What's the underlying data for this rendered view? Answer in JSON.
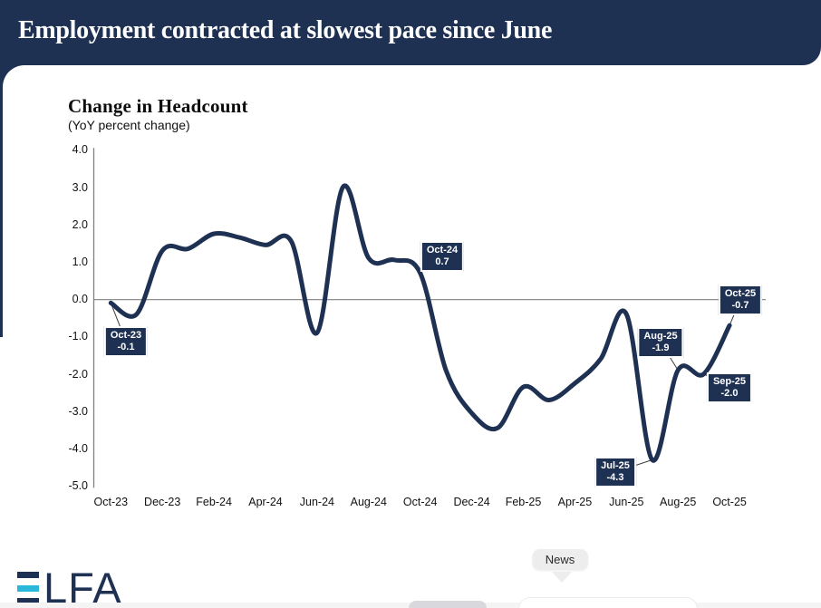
{
  "header": {
    "title": "Employment contracted at slowest pace since June"
  },
  "chart": {
    "title": "Change in Headcount",
    "subtitle": "(YoY percent change)"
  },
  "chart_data": {
    "type": "line",
    "x": [
      "Oct-23",
      "Nov-23",
      "Dec-23",
      "Jan-24",
      "Feb-24",
      "Mar-24",
      "Apr-24",
      "May-24",
      "Jun-24",
      "Jul-24",
      "Aug-24",
      "Sep-24",
      "Oct-24",
      "Nov-24",
      "Dec-24",
      "Jan-25",
      "Feb-25",
      "Mar-25",
      "Apr-25",
      "May-25",
      "Jun-25",
      "Jul-25",
      "Aug-25",
      "Sep-25",
      "Oct-25"
    ],
    "values": [
      -0.1,
      -0.4,
      1.3,
      1.35,
      1.75,
      1.65,
      1.45,
      1.55,
      -0.9,
      3.0,
      1.1,
      1.05,
      0.7,
      -1.9,
      -3.05,
      -3.45,
      -2.35,
      -2.7,
      -2.25,
      -1.6,
      -0.4,
      -4.3,
      -1.9,
      -2.0,
      -0.7
    ],
    "title": "Change in Headcount",
    "subtitle": "(YoY percent change)",
    "xlabel": "",
    "ylabel": "",
    "ylim": [
      -5.0,
      4.0
    ],
    "y_tick_labels": [
      "4.0",
      "3.0",
      "2.0",
      "1.0",
      "0.0",
      "-1.0",
      "-2.0",
      "-3.0",
      "-4.0",
      "-5.0"
    ],
    "y_ticks": [
      4,
      3,
      2,
      1,
      0,
      -1,
      -2,
      -3,
      -4,
      -5
    ],
    "x_tick_labels": [
      "Oct-23",
      "Dec-23",
      "Feb-24",
      "Apr-24",
      "Jun-24",
      "Aug-24",
      "Oct-24",
      "Dec-24",
      "Feb-25",
      "Apr-25",
      "Jun-25",
      "Aug-25",
      "Oct-25"
    ],
    "grid": "zero-line-only",
    "legend": "none",
    "line_color": "#1f3153",
    "annotations": [
      {
        "label": "Oct-23",
        "value": "-0.1"
      },
      {
        "label": "Oct-24",
        "value": "0.7"
      },
      {
        "label": "Jul-25",
        "value": "-4.3"
      },
      {
        "label": "Aug-25",
        "value": "-1.9"
      },
      {
        "label": "Sep-25",
        "value": "-2.0"
      },
      {
        "label": "Oct-25",
        "value": "-0.7"
      }
    ]
  },
  "logo": {
    "brand": "ELFA",
    "letters": "LFA"
  },
  "tooltip": {
    "label": "News"
  },
  "colors": {
    "navy": "#1f3153",
    "cyan": "#2ab7d9",
    "axis_gray": "#808080",
    "tooltip_gray": "#ededee"
  }
}
